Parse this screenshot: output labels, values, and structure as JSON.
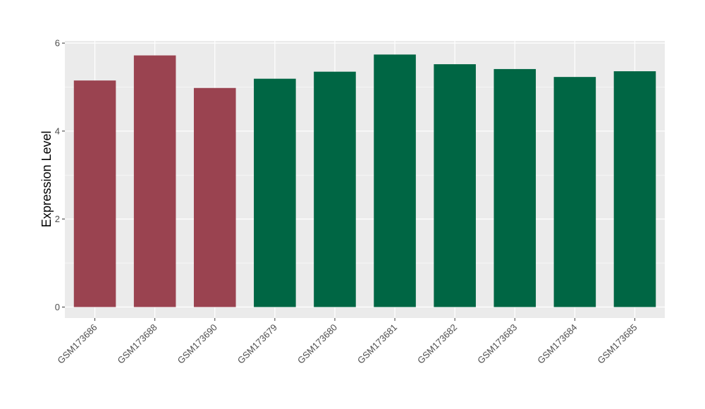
{
  "chart_data": {
    "type": "bar",
    "title": "",
    "xlabel": "",
    "ylabel": "Expression Level",
    "ylim": [
      -0.25,
      6.05
    ],
    "yticks": [
      0,
      2,
      4,
      6
    ],
    "grid": true,
    "categories": [
      "GSM173686",
      "GSM173688",
      "GSM173690",
      "GSM173679",
      "GSM173680",
      "GSM173681",
      "GSM173682",
      "GSM173683",
      "GSM173684",
      "GSM173685"
    ],
    "values": [
      5.15,
      5.72,
      4.98,
      5.19,
      5.35,
      5.74,
      5.52,
      5.41,
      5.23,
      5.36
    ],
    "bar_colors": [
      "#9A4350",
      "#9A4350",
      "#9A4350",
      "#006644",
      "#006644",
      "#006644",
      "#006644",
      "#006644",
      "#006644",
      "#006644"
    ],
    "panel_background": "#EBEBEB",
    "grid_color": "#FFFFFF"
  }
}
